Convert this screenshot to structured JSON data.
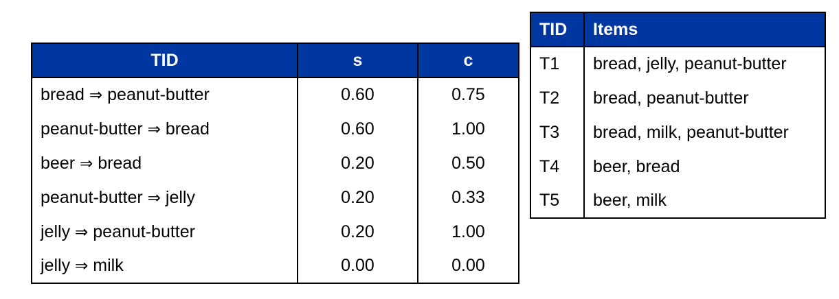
{
  "rules_table": {
    "headers": [
      "TID",
      "s",
      "c"
    ],
    "rows": [
      {
        "antecedent": "bread",
        "arrow": "⇒",
        "consequent": "peanut-butter",
        "s": "0.60",
        "c": "0.75"
      },
      {
        "antecedent": "peanut-butter",
        "arrow": "⇒",
        "consequent": "bread",
        "s": "0.60",
        "c": "1.00"
      },
      {
        "antecedent": "beer",
        "arrow": "⇒",
        "consequent": "bread",
        "s": "0.20",
        "c": "0.50"
      },
      {
        "antecedent": "peanut-butter",
        "arrow": "⇒",
        "consequent": "jelly",
        "s": "0.20",
        "c": "0.33"
      },
      {
        "antecedent": "jelly",
        "arrow": "⇒",
        "consequent": "peanut-butter",
        "s": "0.20",
        "c": "1.00"
      },
      {
        "antecedent": "jelly",
        "arrow": "⇒",
        "consequent": "milk",
        "s": "0.00",
        "c": "0.00"
      }
    ]
  },
  "transactions_table": {
    "headers": [
      "TID",
      "Items"
    ],
    "rows": [
      {
        "tid": "T1",
        "items": "bread, jelly, peanut-butter"
      },
      {
        "tid": "T2",
        "items": "bread, peanut-butter"
      },
      {
        "tid": "T3",
        "items": "bread, milk, peanut-butter"
      },
      {
        "tid": "T4",
        "items": "beer, bread"
      },
      {
        "tid": "T5",
        "items": "beer, milk"
      }
    ]
  },
  "colors": {
    "header_background": "#0036a0",
    "header_text": "#ffffff",
    "border": "#000000"
  }
}
